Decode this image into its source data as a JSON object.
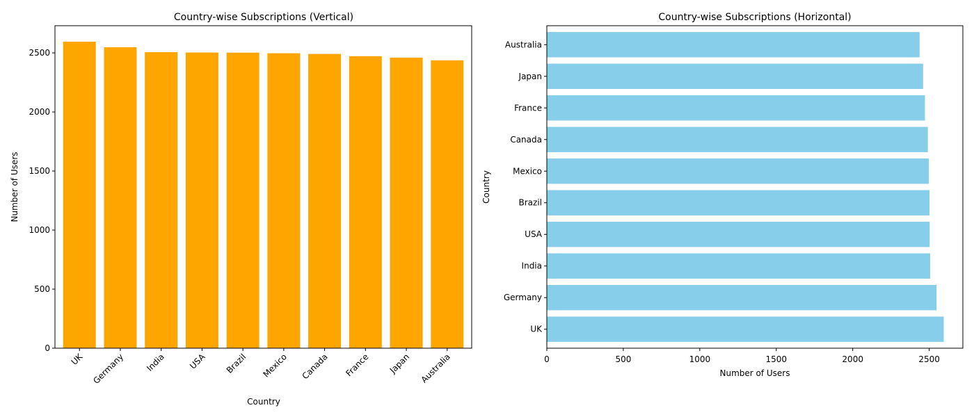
{
  "chart_data": [
    {
      "type": "bar",
      "orientation": "vertical",
      "title": "Country-wise Subscriptions (Vertical)",
      "xlabel": "Country",
      "ylabel": "Number of Users",
      "categories": [
        "UK",
        "Germany",
        "India",
        "USA",
        "Brazil",
        "Mexico",
        "Canada",
        "France",
        "Japan",
        "Australia"
      ],
      "values": [
        2595,
        2548,
        2506,
        2503,
        2502,
        2497,
        2491,
        2472,
        2460,
        2437
      ],
      "ylim": [
        0,
        2730
      ],
      "yticks": [
        0,
        500,
        1000,
        1500,
        2000,
        2500
      ],
      "tick_rotation_deg": 45,
      "color": "#ffa500",
      "grid": false
    },
    {
      "type": "bar",
      "orientation": "horizontal",
      "title": "Country-wise Subscriptions (Horizontal)",
      "xlabel": "Number of Users",
      "ylabel": "Country",
      "categories": [
        "UK",
        "Germany",
        "India",
        "USA",
        "Brazil",
        "Mexico",
        "Canada",
        "France",
        "Japan",
        "Australia"
      ],
      "values": [
        2595,
        2548,
        2506,
        2503,
        2502,
        2497,
        2491,
        2472,
        2460,
        2437
      ],
      "xlim": [
        0,
        2720
      ],
      "xticks": [
        0,
        500,
        1000,
        1500,
        2000,
        2500
      ],
      "color": "#87ceeb",
      "grid": false
    }
  ]
}
